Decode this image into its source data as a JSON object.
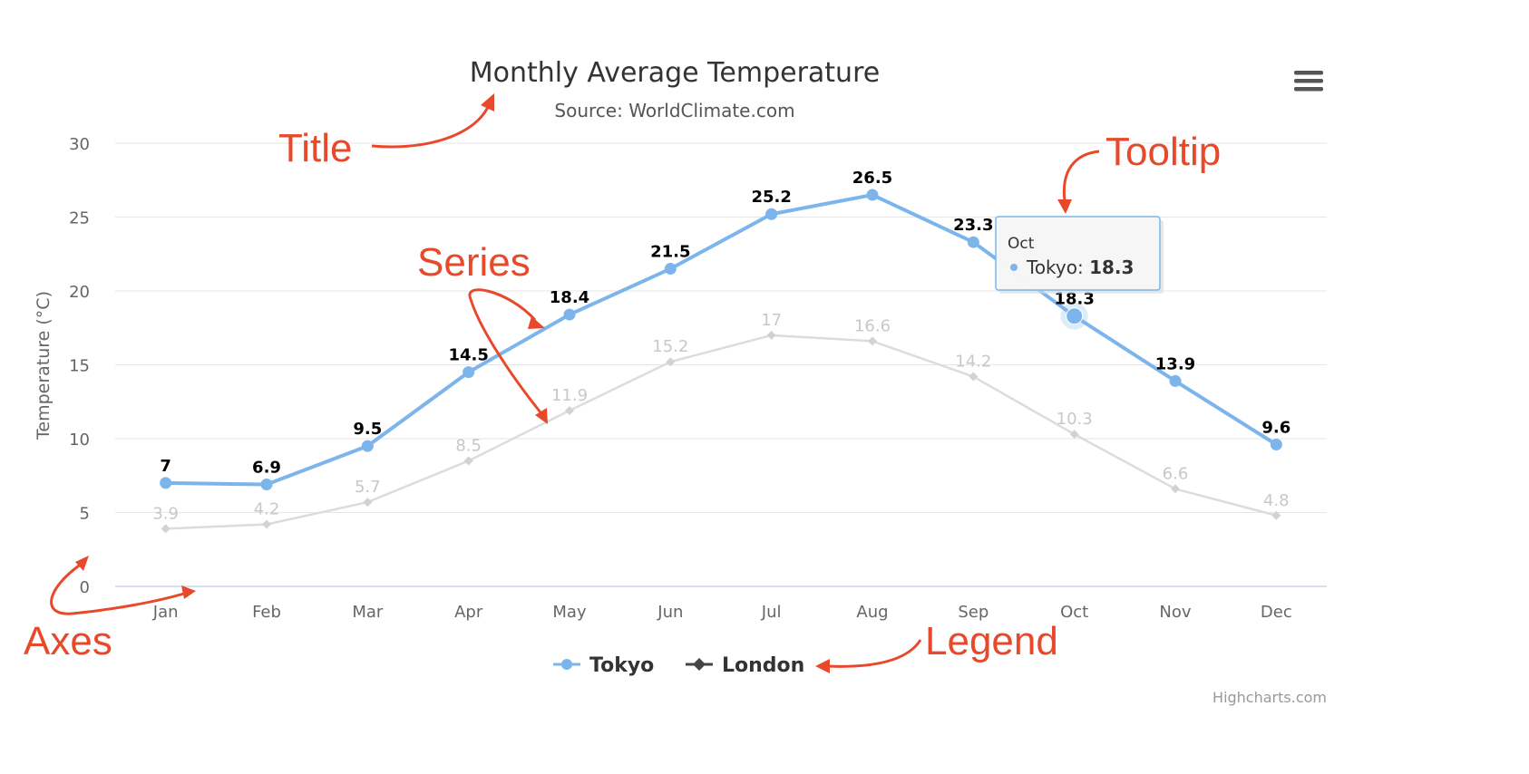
{
  "chart_data": {
    "type": "line",
    "title": "Monthly Average Temperature",
    "subtitle": "Source: WorldClimate.com",
    "ylabel": "Temperature (°C)",
    "xlabel": "",
    "ylim": [
      0,
      30
    ],
    "yticks": [
      0,
      5,
      10,
      15,
      20,
      25,
      30
    ],
    "categories": [
      "Jan",
      "Feb",
      "Mar",
      "Apr",
      "May",
      "Jun",
      "Jul",
      "Aug",
      "Sep",
      "Oct",
      "Nov",
      "Dec"
    ],
    "grid": true,
    "legend_position": "bottom-center",
    "series": [
      {
        "name": "Tokyo",
        "values": [
          7,
          6.9,
          9.5,
          14.5,
          18.4,
          21.5,
          25.2,
          26.5,
          23.3,
          18.3,
          13.9,
          9.6
        ],
        "labels": [
          "7",
          "6.9",
          "9.5",
          "14.5",
          "18.4",
          "21.5",
          "25.2",
          "26.5",
          "23.3",
          "18.3",
          "13.9",
          "9.6"
        ],
        "color": "#7cb5ec",
        "marker": "circle"
      },
      {
        "name": "London",
        "values": [
          3.9,
          4.2,
          5.7,
          8.5,
          11.9,
          15.2,
          17,
          16.6,
          14.2,
          10.3,
          6.6,
          4.8
        ],
        "labels": [
          "3.9",
          "4.2",
          "5.7",
          "8.5",
          "11.9",
          "15.2",
          "17",
          "16.6",
          "14.2",
          "10.3",
          "6.6",
          "4.8"
        ],
        "color": "#434348",
        "marker": "diamond"
      }
    ],
    "tooltip": {
      "category": "Oct",
      "series": "Tokyo",
      "series_label": "Tokyo: ",
      "value": "18.3"
    }
  },
  "credits": "Highcharts.com",
  "menu_icon": "hamburger-menu-icon",
  "annotations": {
    "title": "Title",
    "tooltip": "Tooltip",
    "series": "Series",
    "axes": "Axes",
    "legend": "Legend"
  },
  "colors": {
    "tokyo": "#7cb5ec",
    "london_faded": "#d8d8d8",
    "annotation": "#e8492a",
    "grid": "#e6e6e6"
  }
}
